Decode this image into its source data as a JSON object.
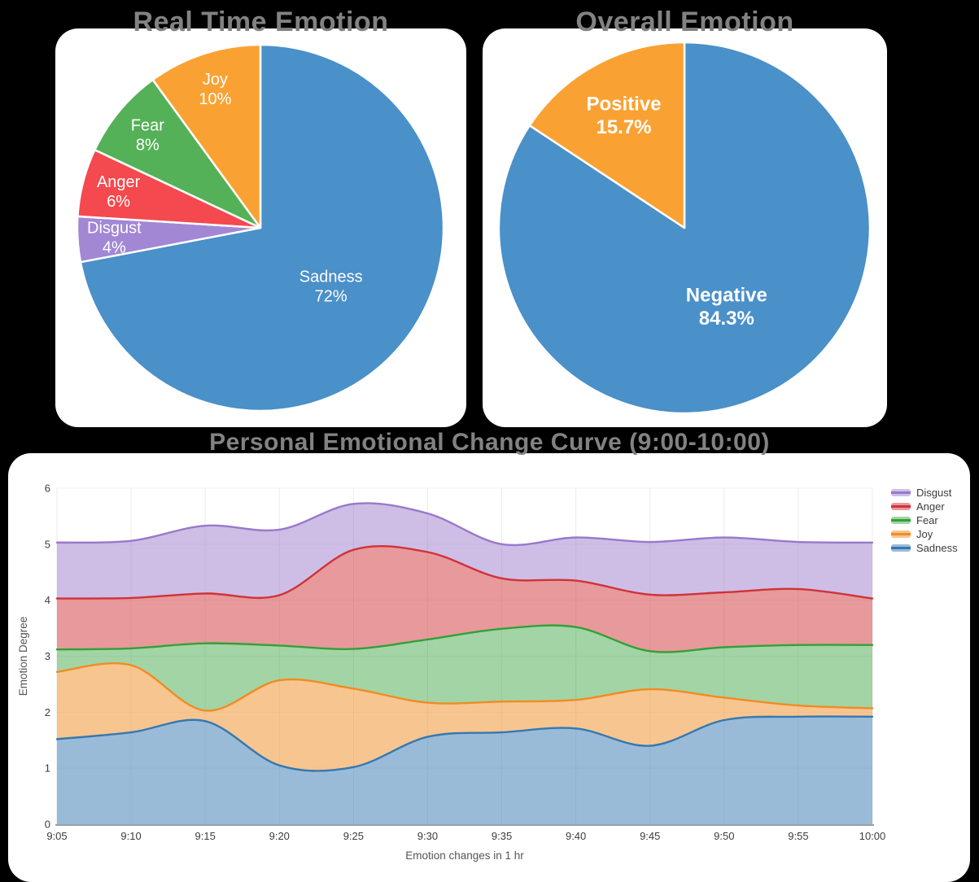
{
  "page": {
    "background": "#000000",
    "card_background": "#ffffff",
    "title_color": "#828282"
  },
  "chart_data": [
    {
      "id": "real-time-emotion-pie",
      "type": "pie",
      "title": "Real Time Emotion",
      "start_angle": "top",
      "direction": "clockwise",
      "label_text_color": "#ffffff",
      "slices": [
        {
          "label": "Sadness",
          "value": 72,
          "pct_label": "72%",
          "color": "#4a90c9"
        },
        {
          "label": "Disgust",
          "value": 4,
          "pct_label": "4%",
          "color": "#a287d4"
        },
        {
          "label": "Anger",
          "value": 6,
          "pct_label": "6%",
          "color": "#f4494e"
        },
        {
          "label": "Fear",
          "value": 8,
          "pct_label": "8%",
          "color": "#54b158"
        },
        {
          "label": "Joy",
          "value": 10,
          "pct_label": "10%",
          "color": "#f9a233"
        }
      ]
    },
    {
      "id": "overall-emotion-pie",
      "type": "pie",
      "title": "Overall Emotion",
      "start_angle": "top",
      "direction": "clockwise",
      "label_text_color": "#ffffff",
      "slices": [
        {
          "label": "Negative",
          "value": 84.3,
          "pct_label": "84.3%",
          "color": "#4a90c9"
        },
        {
          "label": "Positive",
          "value": 15.7,
          "pct_label": "15.7%",
          "color": "#f9a233"
        }
      ]
    },
    {
      "id": "emotion-change-curve",
      "type": "area",
      "title": "Personal Emotional Change Curve (9:00-10:00)",
      "xlabel": "Emotion changes in 1 hr",
      "ylabel": "Emotion Degree",
      "x": [
        "9:05",
        "9:10",
        "9:15",
        "9:20",
        "9:25",
        "9:30",
        "9:35",
        "9:40",
        "9:45",
        "9:50",
        "9:55",
        "10:00"
      ],
      "y_ticks": [
        0,
        1,
        2,
        3,
        4,
        5,
        6
      ],
      "ylim": [
        0,
        6
      ],
      "stacked": true,
      "smoothing": "spline",
      "grid": true,
      "legend_position": "top-right",
      "legend_order": [
        "Disgust",
        "Anger",
        "Fear",
        "Joy",
        "Sadness"
      ],
      "series": [
        {
          "name": "Sadness",
          "line_color": "#3578b1",
          "fill_color": "rgba(53,120,177,0.50)",
          "values": [
            1.52,
            1.64,
            1.84,
            1.05,
            1.02,
            1.56,
            1.64,
            1.71,
            1.4,
            1.86,
            1.92,
            1.92
          ]
        },
        {
          "name": "Joy",
          "line_color": "#f08c22",
          "fill_color": "rgba(240,140,34,0.50)",
          "values": [
            1.2,
            1.2,
            0.19,
            1.52,
            1.4,
            0.61,
            0.55,
            0.51,
            1.01,
            0.4,
            0.2,
            0.15
          ]
        },
        {
          "name": "Fear",
          "line_color": "#33a038",
          "fill_color": "rgba(51,160,56,0.45)",
          "values": [
            0.4,
            0.3,
            1.2,
            0.62,
            0.71,
            1.13,
            1.3,
            1.3,
            0.68,
            0.9,
            1.08,
            1.13
          ]
        },
        {
          "name": "Anger",
          "line_color": "#cf3338",
          "fill_color": "rgba(207,51,56,0.50)",
          "values": [
            0.91,
            0.9,
            0.89,
            0.9,
            1.77,
            1.56,
            0.9,
            0.83,
            1.01,
            0.98,
            1.0,
            0.83
          ]
        },
        {
          "name": "Disgust",
          "line_color": "#9878cb",
          "fill_color": "rgba(152,120,203,0.48)",
          "values": [
            1.0,
            1.02,
            1.21,
            1.17,
            0.82,
            0.69,
            0.61,
            0.77,
            0.94,
            0.98,
            0.84,
            1.0
          ]
        }
      ]
    }
  ]
}
